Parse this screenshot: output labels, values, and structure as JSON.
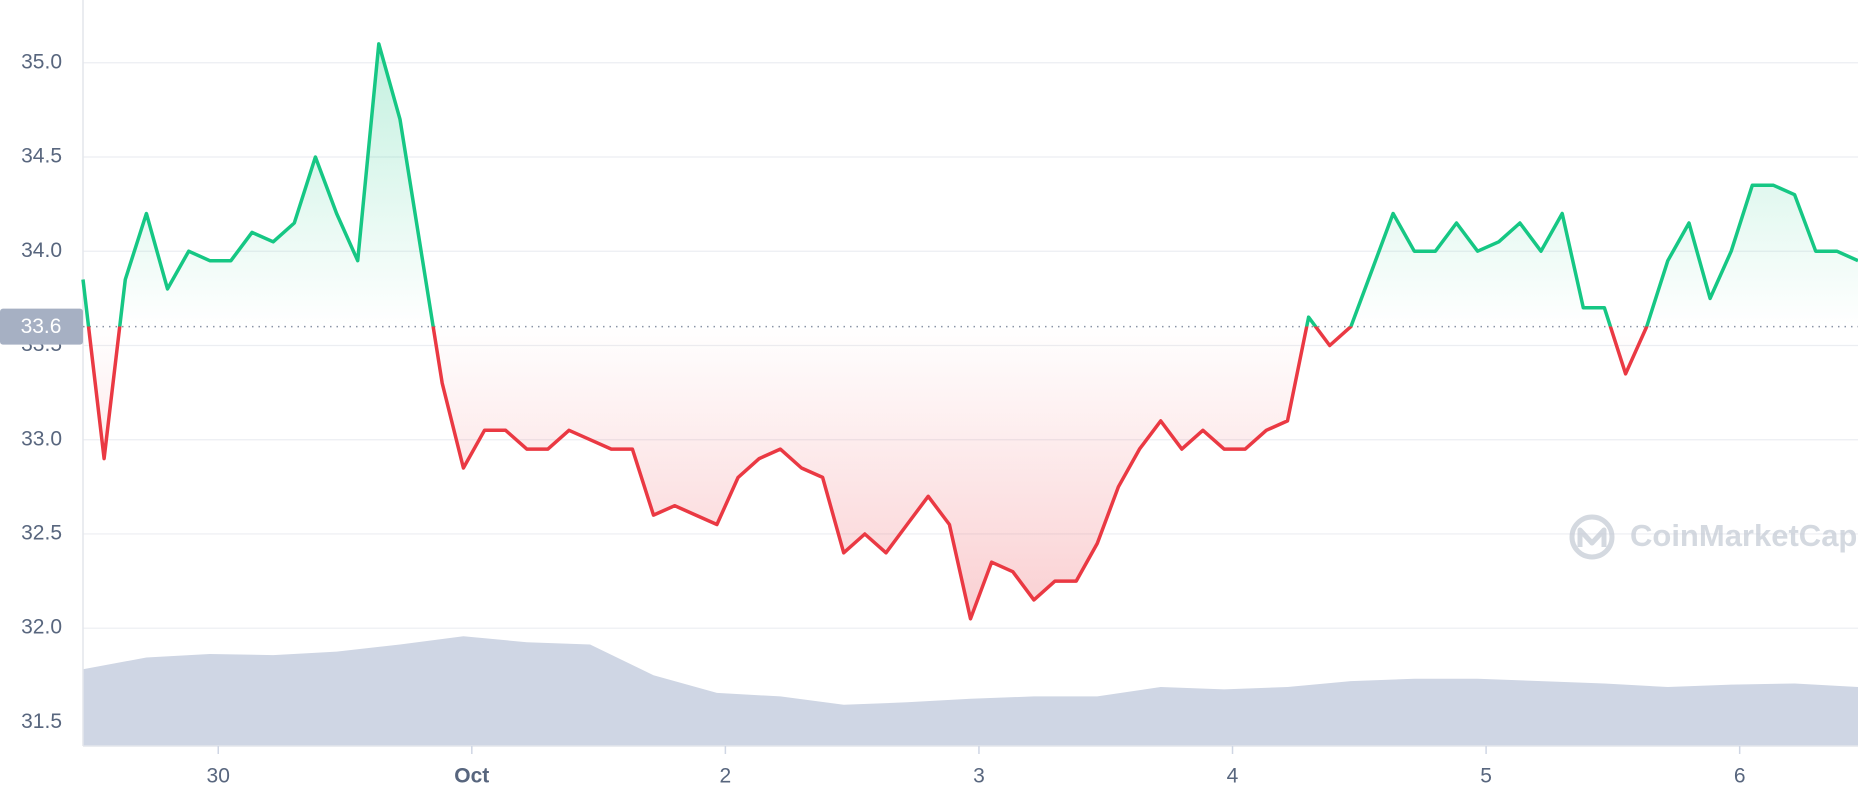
{
  "chart_data": {
    "type": "line",
    "values": [
      33.85,
      32.9,
      33.85,
      34.2,
      33.8,
      34.0,
      33.95,
      33.95,
      34.1,
      34.05,
      34.15,
      34.5,
      34.2,
      33.95,
      35.1,
      34.7,
      34.0,
      33.3,
      32.85,
      33.05,
      33.05,
      32.95,
      32.95,
      33.05,
      33.0,
      32.95,
      32.95,
      32.6,
      32.65,
      32.6,
      32.55,
      32.8,
      32.9,
      32.95,
      32.85,
      32.8,
      32.4,
      32.5,
      32.4,
      32.55,
      32.7,
      32.55,
      32.05,
      32.35,
      32.3,
      32.15,
      32.25,
      32.25,
      32.45,
      32.75,
      32.95,
      33.1,
      32.95,
      33.05,
      32.95,
      32.95,
      33.05,
      33.1,
      33.65,
      33.5,
      33.6,
      33.9,
      34.2,
      34.0,
      34.0,
      34.15,
      34.0,
      34.05,
      34.15,
      34.0,
      34.2,
      33.7,
      33.7,
      33.35,
      33.6,
      33.95,
      34.15,
      33.75,
      34.0,
      34.35,
      34.35,
      34.3,
      34.0,
      34.0,
      33.95
    ],
    "color_up": "#16c784",
    "color_down": "#ea3943",
    "baseline": 33.6,
    "volume": {
      "values": [
        65,
        75,
        78,
        77,
        80,
        86,
        93,
        88,
        86,
        60,
        45,
        42,
        35,
        37,
        40,
        42,
        42,
        50,
        48,
        50,
        55,
        57,
        57,
        55,
        53,
        50,
        52,
        53,
        50
      ],
      "ylim": [
        0,
        100
      ],
      "color": "#cfd6e4"
    },
    "xlim": [
      0,
      84
    ],
    "xticks": [
      {
        "value": 6.4,
        "label": "30"
      },
      {
        "value": 18.4,
        "label": "Oct"
      },
      {
        "value": 30.4,
        "label": "2"
      },
      {
        "value": 42.4,
        "label": "3"
      },
      {
        "value": 54.4,
        "label": "4"
      },
      {
        "value": 66.4,
        "label": "5"
      },
      {
        "value": 78.4,
        "label": "6"
      }
    ],
    "ylim": [
      31.375,
      35.333
    ],
    "yticks": [
      31.5,
      {
        "value": 32,
        "label": "32.0"
      },
      32.5,
      {
        "value": 33,
        "label": "33.0"
      },
      33.5,
      {
        "value": 34,
        "label": "34.0"
      },
      34.5,
      {
        "value": 35,
        "label": "35.0"
      }
    ],
    "grid": true,
    "watermark": "CoinMarketCap"
  }
}
